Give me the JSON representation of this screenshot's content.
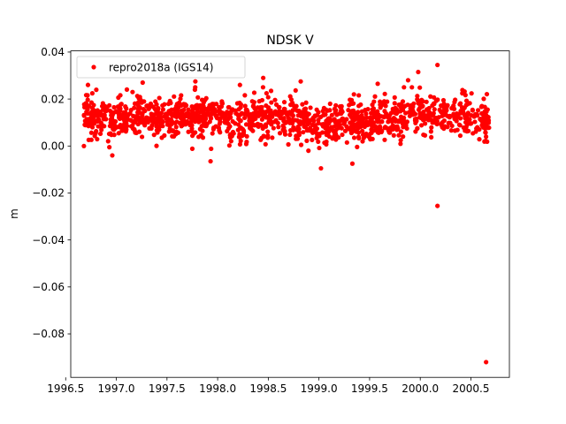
{
  "chart_data": {
    "type": "scatter",
    "title": "NDSK V",
    "xlabel": "",
    "ylabel": "m",
    "xlim": [
      1996.55,
      2000.88
    ],
    "ylim": [
      -0.0985,
      0.0405
    ],
    "x_ticks": [
      1996.5,
      1997.0,
      1997.5,
      1998.0,
      1998.5,
      1999.0,
      1999.5,
      2000.0,
      2000.5
    ],
    "x_tick_labels": [
      "1996.5",
      "1997.0",
      "1997.5",
      "1998.0",
      "1998.5",
      "1999.0",
      "1999.5",
      "2000.0",
      "2000.5"
    ],
    "y_ticks": [
      0.04,
      0.02,
      0.0,
      -0.02,
      -0.04,
      -0.06,
      -0.08
    ],
    "y_tick_labels": [
      "0.04",
      "0.02",
      "0.00",
      "−0.02",
      "−0.04",
      "−0.06",
      "−0.08"
    ],
    "grid": false,
    "legend_position": "top-left",
    "color": "#ff0000",
    "series": [
      {
        "name": "repro2018a (IGS14)",
        "x_range": [
          1996.68,
          2000.68
        ],
        "trend": [
          [
            1996.68,
            0.0135
          ],
          [
            1997.0,
            0.011
          ],
          [
            1997.3,
            0.012
          ],
          [
            1997.6,
            0.0125
          ],
          [
            1997.8,
            0.014
          ],
          [
            1998.0,
            0.013
          ],
          [
            1998.2,
            0.011
          ],
          [
            1998.3,
            0.0095
          ],
          [
            1998.45,
            0.0135
          ],
          [
            1998.7,
            0.012
          ],
          [
            1998.9,
            0.01
          ],
          [
            1999.0,
            0.007
          ],
          [
            1999.2,
            0.0105
          ],
          [
            1999.45,
            0.01
          ],
          [
            1999.7,
            0.011
          ],
          [
            2000.0,
            0.0135
          ],
          [
            2000.3,
            0.014
          ],
          [
            2000.5,
            0.013
          ],
          [
            2000.68,
            0.012
          ]
        ],
        "scatter_sd": 0.0045,
        "n_points": 1400,
        "extremes": [
          {
            "x": 1996.68,
            "y": 0.0
          },
          {
            "x": 1996.72,
            "y": 0.026
          },
          {
            "x": 1996.96,
            "y": -0.004
          },
          {
            "x": 1997.26,
            "y": 0.027
          },
          {
            "x": 1997.78,
            "y": 0.0275
          },
          {
            "x": 1997.93,
            "y": -0.0065
          },
          {
            "x": 1998.22,
            "y": 0.026
          },
          {
            "x": 1998.45,
            "y": 0.029
          },
          {
            "x": 1998.82,
            "y": 0.0275
          },
          {
            "x": 1999.02,
            "y": -0.0095
          },
          {
            "x": 1999.33,
            "y": -0.0075
          },
          {
            "x": 1999.58,
            "y": 0.0265
          },
          {
            "x": 1999.88,
            "y": 0.028
          },
          {
            "x": 1999.98,
            "y": 0.0315
          },
          {
            "x": 2000.17,
            "y": 0.0345
          },
          {
            "x": 2000.17,
            "y": -0.0255
          },
          {
            "x": 2000.65,
            "y": -0.092
          }
        ]
      }
    ]
  }
}
